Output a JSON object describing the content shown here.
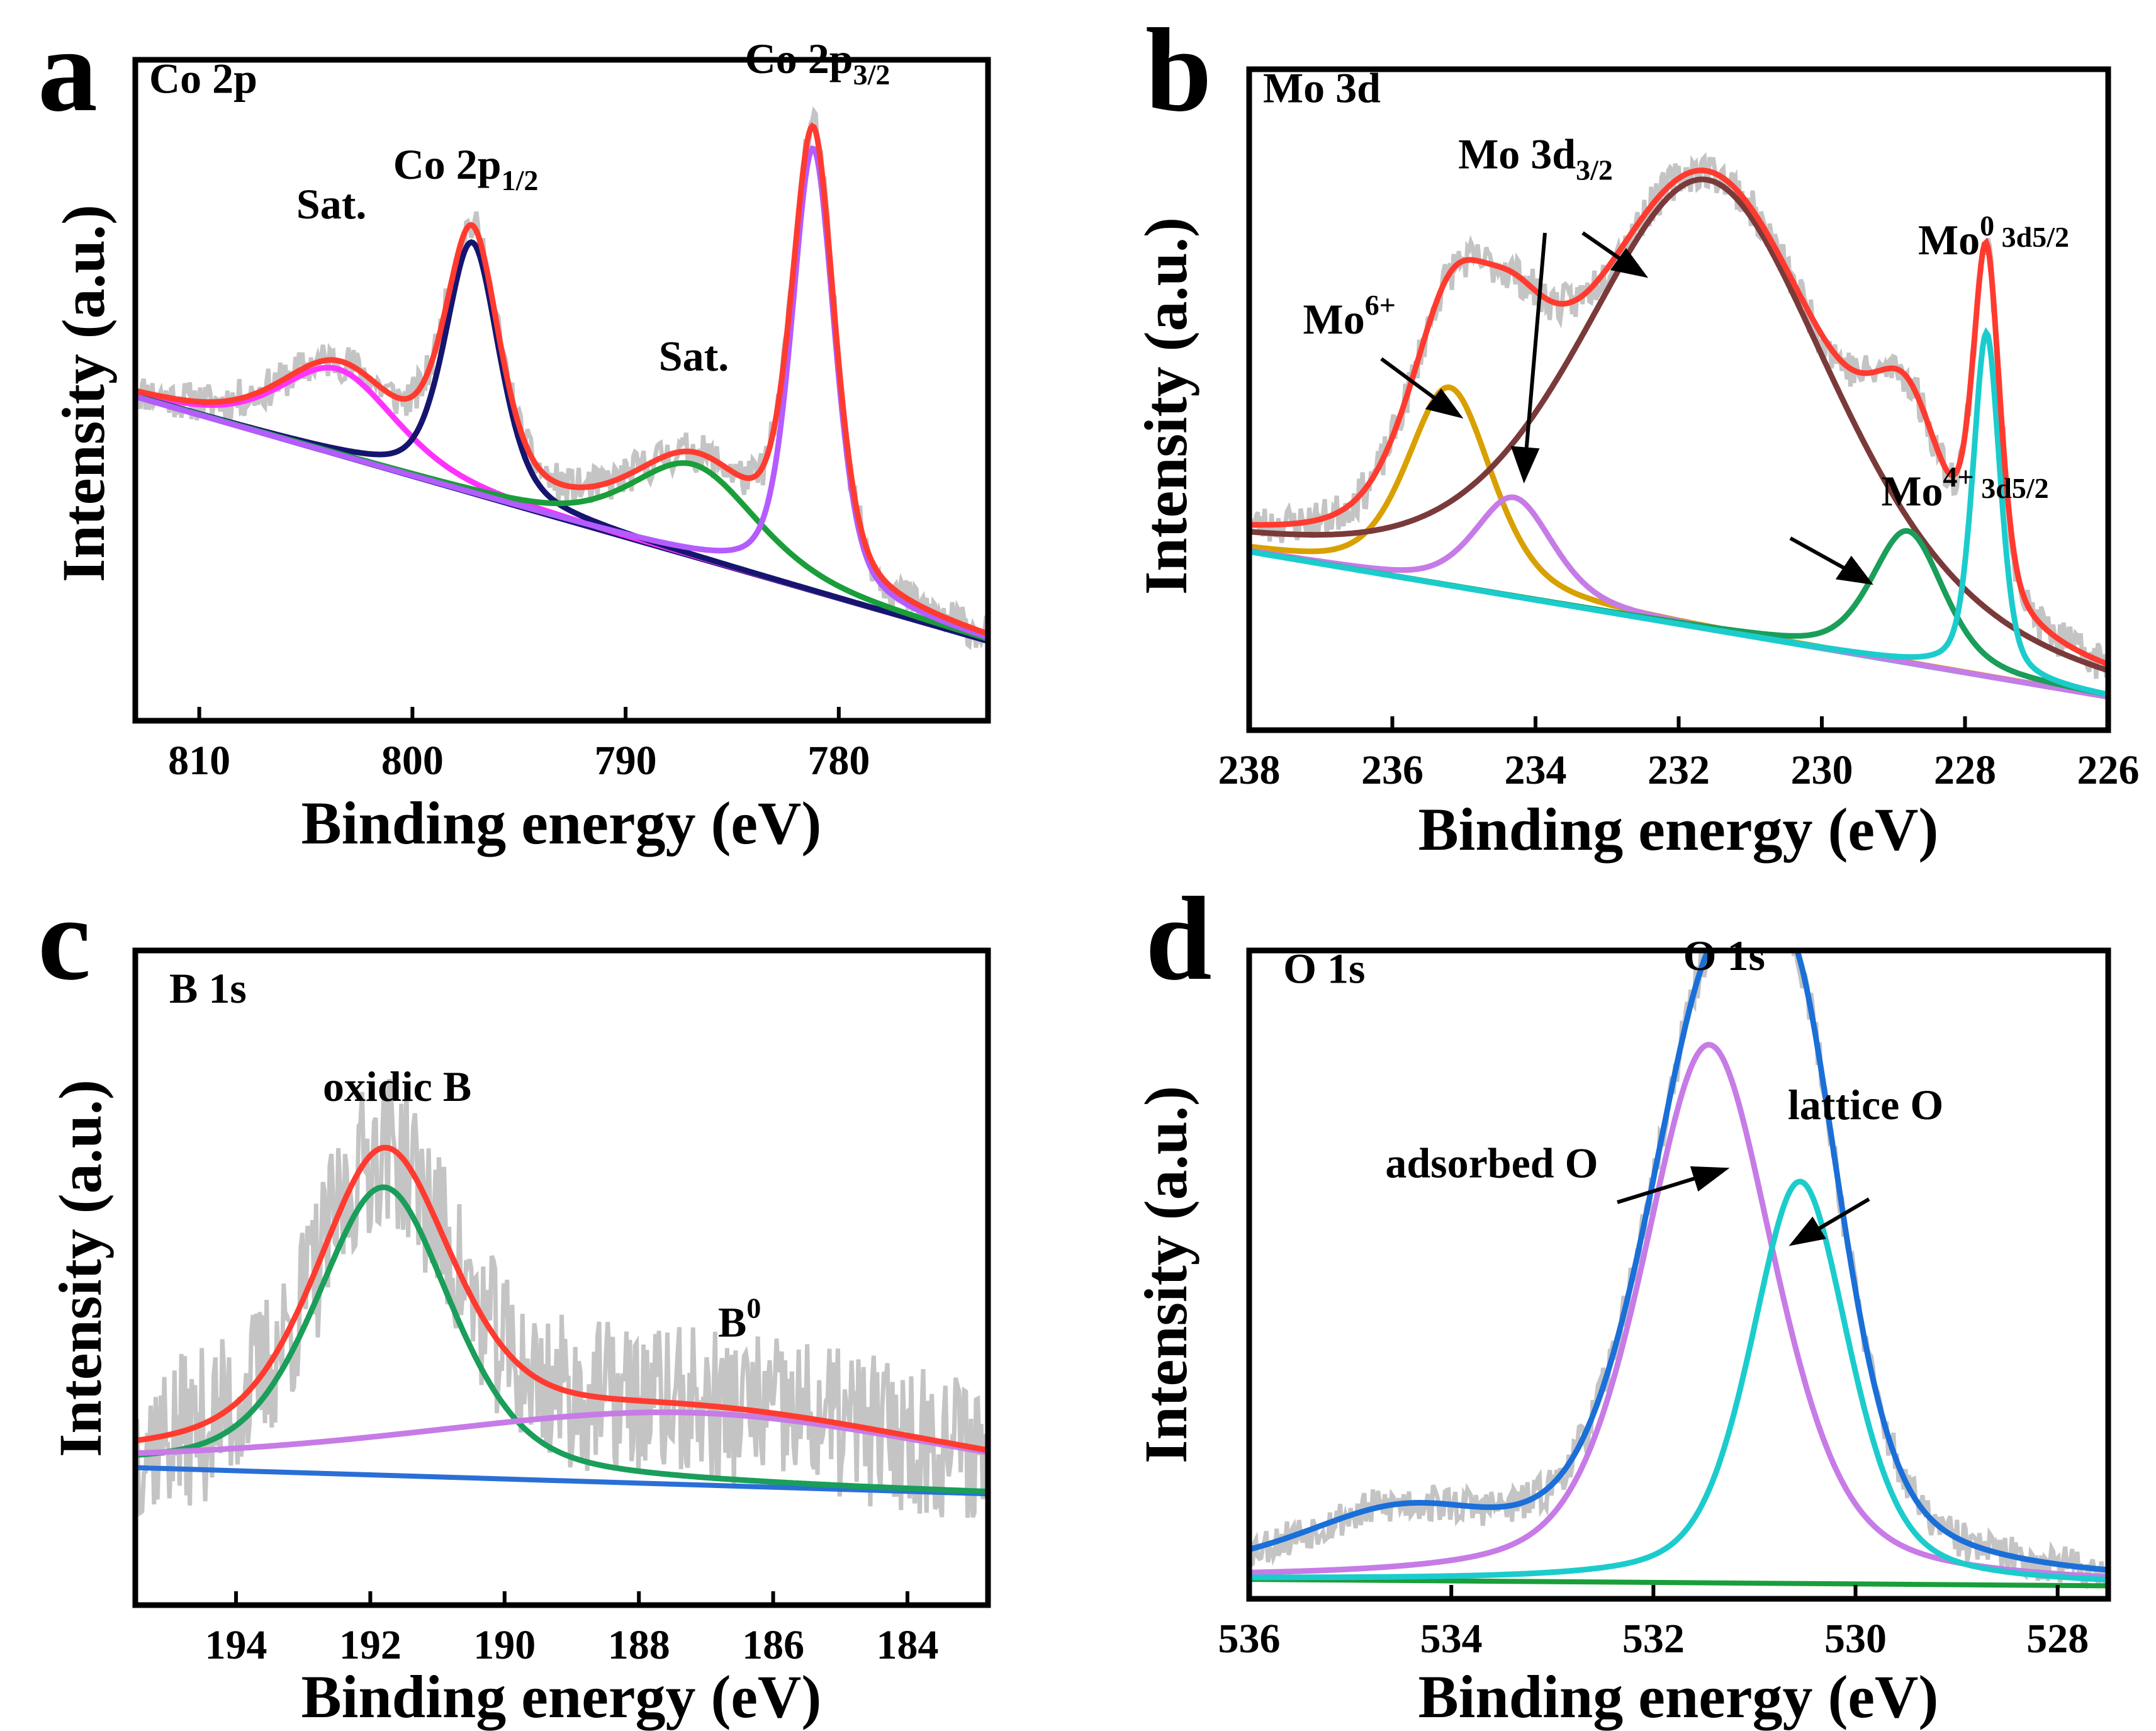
{
  "figure": {
    "panel_count": 4,
    "xlabel": "Binding energy (eV)",
    "ylabel": "Intensity (a.u.)"
  },
  "colors": {
    "raw": "#c4c4c4",
    "envelope_red": "#ff3b30",
    "envelope_blue": "#1a6fd8",
    "magenta": "#ff33ff",
    "navy": "#151570",
    "green": "#1a9e3a",
    "violet": "#b45cff",
    "purple_light": "#c77be6",
    "gold": "#d8a000",
    "brown": "#7a3a3a",
    "cyan": "#1ccccc",
    "baseline_blue": "#2a6fd6",
    "green_dark": "#1a9e5a"
  },
  "chart_data": [
    {
      "panel": "a",
      "type": "line",
      "title": "Co 2p",
      "xlabel": "Binding energy (eV)",
      "ylabel": "Intensity (a.u.)",
      "xlim": [
        813,
        773
      ],
      "ylim": [
        0,
        1
      ],
      "xticks": [
        "810",
        "800",
        "790",
        "780"
      ],
      "baseline": {
        "x": [
          813,
          773
        ],
        "y": [
          0.49,
          0.12
        ]
      },
      "series": [
        {
          "name": "raw",
          "color": "#c4c4c4",
          "kind": "raw",
          "noise": 0.03,
          "seed": 11
        },
        {
          "name": "envelope",
          "color": "#ff3b30",
          "kind": "envelope"
        },
        {
          "name": "Sat. (high BE)",
          "color": "#ff33ff",
          "kind": "peak",
          "center": 803.5,
          "amp": 0.13,
          "fwhm": 6.5
        },
        {
          "name": "Co 2p1/2",
          "color": "#151570",
          "kind": "peak",
          "center": 797.2,
          "amp": 0.38,
          "fwhm": 3.0
        },
        {
          "name": "Sat. (low BE)",
          "color": "#1a9e3a",
          "kind": "peak",
          "center": 786.8,
          "amp": 0.14,
          "fwhm": 7.0
        },
        {
          "name": "Co 2p3/2",
          "color": "#b45cff",
          "kind": "peak",
          "center": 781.2,
          "amp": 0.67,
          "fwhm": 2.4
        }
      ],
      "annotations": [
        {
          "base": "Co 2p",
          "sub": "",
          "sup": "",
          "x": 813,
          "y": 0.95
        },
        {
          "base": "Sat.",
          "sub": "",
          "sup": "",
          "x": 803.8,
          "y": 0.76
        },
        {
          "base": "Co 2p",
          "sub": "1/2",
          "sup": "",
          "x": 797.5,
          "y": 0.82
        },
        {
          "base": "Sat.",
          "sub": "",
          "sup": "",
          "x": 786.8,
          "y": 0.53
        },
        {
          "base": "Co 2p",
          "sub": "3/2",
          "sup": "",
          "x": 781.0,
          "y": 0.98
        }
      ]
    },
    {
      "panel": "b",
      "type": "line",
      "title": "Mo 3d",
      "xlabel": "Binding energy (eV)",
      "ylabel": "Intensity (a.u.)",
      "xlim": [
        238,
        226
      ],
      "ylim": [
        0,
        1
      ],
      "xticks": [
        "238",
        "236",
        "234",
        "232",
        "230",
        "228",
        "226"
      ],
      "baseline": {
        "x": [
          238,
          226
        ],
        "y": [
          0.27,
          0.05
        ]
      },
      "series": [
        {
          "name": "raw",
          "color": "#c4c4c4",
          "kind": "raw",
          "noise": 0.03,
          "seed": 23
        },
        {
          "name": "envelope",
          "color": "#ff3b30",
          "kind": "envelope"
        },
        {
          "name": "Mo6+",
          "color": "#d8a000",
          "kind": "peak",
          "center": 235.2,
          "amp": 0.3,
          "fwhm": 1.4
        },
        {
          "name": "Mo 3d3/2 (Mo4+)",
          "color": "#c77be6",
          "kind": "peak",
          "center": 234.3,
          "amp": 0.15,
          "fwhm": 1.3
        },
        {
          "name": "Mo 3d3/2 (Mo0)",
          "color": "#7a3a3a",
          "kind": "peak",
          "center": 231.6,
          "amp": 0.68,
          "fwhm": 4.2
        },
        {
          "name": "Mo4+ 3d5/2",
          "color": "#1a9e5a",
          "kind": "peak",
          "center": 228.8,
          "amp": 0.2,
          "fwhm": 1.2
        },
        {
          "name": "Mo0 3d5/2",
          "color": "#1ccccc",
          "kind": "peak",
          "center": 227.7,
          "amp": 0.52,
          "fwhm": 0.45
        }
      ],
      "annotations": [
        {
          "base": "Mo 3d",
          "sub": "",
          "sup": "",
          "x": 238,
          "y": 0.95
        },
        {
          "base": "Mo",
          "sub": "",
          "sup": "6+",
          "x": 236.6,
          "y": 0.6
        },
        {
          "base": "Mo 3d",
          "sub": "3/2",
          "sup": "",
          "x": 234.0,
          "y": 0.85
        },
        {
          "base": "Mo",
          "sub": " 3d5/2",
          "sup": "4+",
          "x": 228.0,
          "y": 0.34
        },
        {
          "base": "Mo",
          "sub": " 3d5/2",
          "sup": "0",
          "x": 227.6,
          "y": 0.72
        }
      ]
    },
    {
      "panel": "c",
      "type": "line",
      "title": "B 1s",
      "xlabel": "Binding energy (eV)",
      "ylabel": "Intensity (a.u.)",
      "xlim": [
        195.5,
        182.8
      ],
      "ylim": [
        0,
        1
      ],
      "xticks": [
        "194",
        "192",
        "190",
        "188",
        "186",
        "184"
      ],
      "baseline": {
        "x": [
          195.5,
          182.8
        ],
        "y": [
          0.21,
          0.17
        ]
      },
      "series": [
        {
          "name": "raw",
          "color": "#c4c4c4",
          "kind": "raw",
          "noise": 0.12,
          "seed": 37
        },
        {
          "name": "envelope",
          "color": "#ff3b30",
          "kind": "envelope"
        },
        {
          "name": "oxidic B",
          "color": "#1a9e5a",
          "kind": "peak",
          "center": 191.8,
          "amp": 0.44,
          "fwhm": 2.4
        },
        {
          "name": "B0",
          "color": "#c77be6",
          "kind": "peak",
          "center": 187.2,
          "amp": 0.11,
          "fwhm": 10.0
        }
      ],
      "annotations": [
        {
          "base": "B 1s",
          "sub": "",
          "sup": "",
          "x": 195.2,
          "y": 0.92
        },
        {
          "base": "oxidic B",
          "sub": "",
          "sup": "",
          "x": 191.6,
          "y": 0.77
        },
        {
          "base": "B",
          "sub": "",
          "sup": "0",
          "x": 186.5,
          "y": 0.41
        }
      ]
    },
    {
      "panel": "d",
      "type": "line",
      "title": "O 1s",
      "xlabel": "Binding energy (eV)",
      "ylabel": "Intensity (a.u.)",
      "xlim": [
        536,
        527.5
      ],
      "ylim": [
        0,
        1
      ],
      "xticks": [
        "536",
        "534",
        "532",
        "530",
        "528"
      ],
      "baseline": {
        "x": [
          536,
          527.5
        ],
        "y": [
          0.03,
          0.02
        ]
      },
      "series": [
        {
          "name": "raw",
          "color": "#c4c4c4",
          "kind": "raw",
          "noise": 0.03,
          "seed": 53
        },
        {
          "name": "envelope",
          "color": "#1a6fd8",
          "kind": "envelope"
        },
        {
          "name": "minor (high BE)",
          "color": "#1a6fd8",
          "kind": "hidden",
          "center": 534.5,
          "amp": 0.09,
          "fwhm": 2.4
        },
        {
          "name": "adsorbed O",
          "color": "#c77be6",
          "kind": "peak",
          "center": 531.45,
          "amp": 0.83,
          "fwhm": 1.55
        },
        {
          "name": "lattice O",
          "color": "#1ccccc",
          "kind": "peak",
          "center": 530.55,
          "amp": 0.62,
          "fwhm": 1.15
        }
      ],
      "annotations": [
        {
          "base": "O 1s",
          "sub": "",
          "sup": "",
          "x": 535.8,
          "y": 0.95
        },
        {
          "base": "O 1s",
          "sub": "",
          "sup": "",
          "x": 531.3,
          "y": 0.97
        },
        {
          "base": "adsorbed O",
          "sub": "",
          "sup": "",
          "x": 533.6,
          "y": 0.65
        },
        {
          "base": "lattice O",
          "sub": "",
          "sup": "",
          "x": 529.9,
          "y": 0.74
        }
      ]
    }
  ]
}
